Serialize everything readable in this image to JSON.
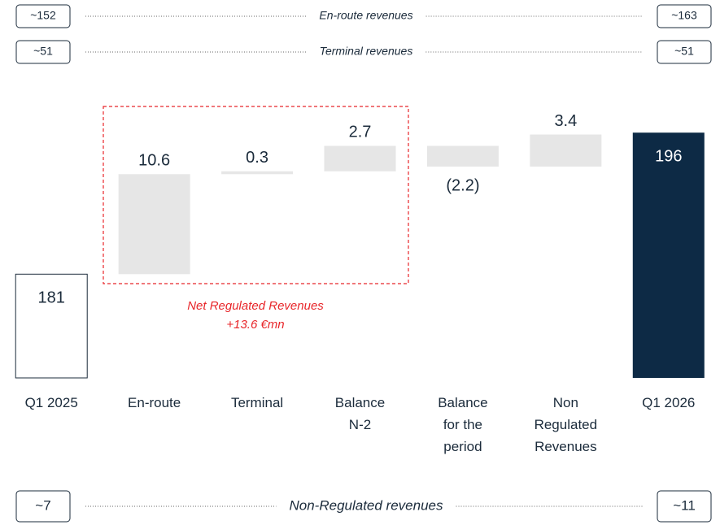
{
  "revenue_rows": [
    {
      "left": "~152",
      "label": "En-route revenues",
      "right": "~163"
    },
    {
      "left": "~51",
      "label": "Terminal revenues",
      "right": "~51"
    },
    {
      "left": "~7",
      "label": "Non-Regulated revenues",
      "right": "~11"
    }
  ],
  "chart_data": {
    "type": "waterfall",
    "categories": [
      "Q1 2025",
      "En-route",
      "Terminal",
      "Balance\nN-2",
      "Balance\nfor the\nperiod",
      "Non\nRegulated\nRevenues",
      "Q1 2026"
    ],
    "values": [
      181,
      10.6,
      0.3,
      2.7,
      -2.2,
      3.4,
      196
    ],
    "value_labels": [
      "181",
      "10.6",
      "0.3",
      "2.7",
      "(2.2)",
      "3.4",
      "196"
    ],
    "measure": [
      "absolute",
      "relative",
      "relative",
      "relative",
      "relative",
      "relative",
      "total"
    ],
    "colors": [
      "#ffffff",
      "#e6e6e6",
      "#e6e6e6",
      "#e6e6e6",
      "#e6e6e6",
      "#e6e6e6",
      "#0d2a45"
    ],
    "edge_colors": [
      "#1b2b3b",
      null,
      null,
      null,
      null,
      null,
      null
    ],
    "ylim": [
      170,
      198
    ],
    "annotations": [
      "Net Regulated Revenues",
      "+13.6 €mn"
    ]
  }
}
